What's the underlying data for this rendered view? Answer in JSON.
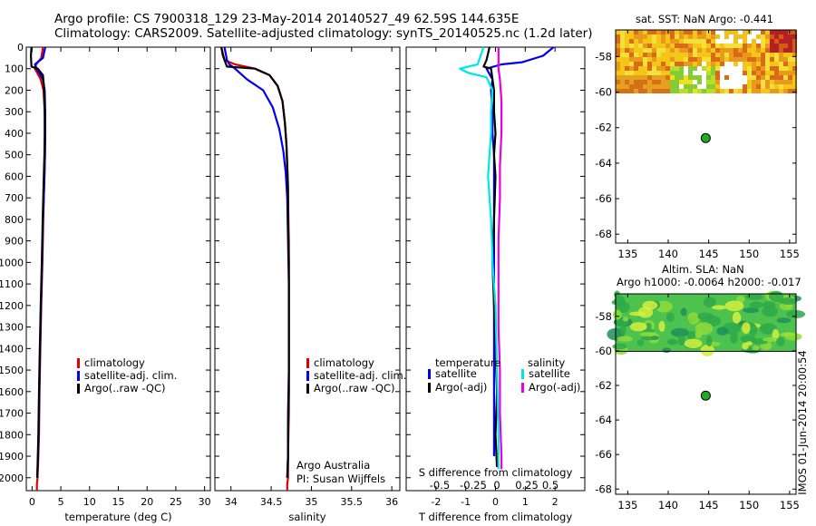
{
  "header": {
    "line1": "Argo profile: CS 7900318_129 23-May-2014 20140527_49 62.59S 144.635E",
    "line2": "Climatology: CARS2009. Satellite-adjusted climatology: synTS_20140525.nc (1.2d later)"
  },
  "credit": {
    "line1": "Argo Australia",
    "line2": "PI: Susan Wijffels"
  },
  "stamp": "IMOS 01-Jun-2014 20:00:54",
  "colors": {
    "climatology": "#e00000",
    "satellite": "#0000ee",
    "argo": "#000000",
    "sal_satellite": "#00e6e6",
    "sal_argo": "#e600e6"
  },
  "chart_data": [
    {
      "type": "line",
      "xlabel": "temperature (deg C)",
      "xlim": [
        -1,
        31
      ],
      "ylim": [
        2060,
        0
      ],
      "xticks": [
        0,
        5,
        10,
        15,
        20,
        25,
        30
      ],
      "yticks": [
        0,
        100,
        200,
        300,
        400,
        500,
        600,
        700,
        800,
        900,
        1000,
        1100,
        1200,
        1300,
        1400,
        1500,
        1600,
        1700,
        1800,
        1900,
        2000
      ],
      "legend": [
        "climatology",
        "satellite-adj. clim.",
        "Argo(..raw -QC)"
      ],
      "series": [
        {
          "name": "climatology",
          "color": "#e00000",
          "x": [
            1.9,
            1.6,
            0.7,
            0.5,
            1.5,
            2.0,
            2.2,
            2.3,
            2.25,
            2.15,
            2.05,
            1.95,
            1.8,
            1.6,
            1.45,
            1.3,
            1.2,
            1.1,
            0.95,
            0.85,
            0.85
          ],
          "y": [
            0,
            50,
            80,
            100,
            150,
            200,
            300,
            400,
            500,
            600,
            700,
            800,
            1000,
            1200,
            1400,
            1600,
            1800,
            1900,
            2000,
            2030,
            2060
          ]
        },
        {
          "name": "satellite-adj. clim.",
          "color": "#0000ee",
          "x": [
            2.3,
            1.9,
            0.5,
            0.8,
            1.9,
            2.2,
            2.3,
            2.3,
            2.25,
            2.15,
            2.05,
            1.9,
            1.75,
            1.55,
            1.4,
            1.25,
            1.15,
            1.05,
            0.9
          ],
          "y": [
            0,
            50,
            80,
            100,
            150,
            200,
            300,
            400,
            500,
            600,
            700,
            800,
            1000,
            1200,
            1400,
            1600,
            1800,
            1900,
            2000
          ]
        },
        {
          "name": "Argo(..raw -QC)",
          "color": "#000000",
          "x": [
            -0.1,
            -0.2,
            -0.1,
            1.0,
            1.9,
            2.1,
            2.2,
            2.2,
            2.15,
            2.05,
            1.95,
            1.85,
            1.7,
            1.5,
            1.35,
            1.2,
            1.1,
            1.0,
            0.9
          ],
          "y": [
            0,
            40,
            90,
            100,
            130,
            200,
            300,
            400,
            500,
            600,
            700,
            800,
            1000,
            1200,
            1400,
            1600,
            1800,
            1900,
            2000
          ]
        }
      ]
    },
    {
      "type": "line",
      "xlabel": "salinity",
      "xlim": [
        33.8,
        36.1
      ],
      "ylim": [
        2060,
        0
      ],
      "xticks": [
        34,
        34.5,
        35,
        35.5,
        36
      ],
      "legend": [
        "climatology",
        "satellite-adj. clim.",
        "Argo(..raw -QC)"
      ],
      "series": [
        {
          "name": "climatology",
          "color": "#e00000",
          "x": [
            33.88,
            33.92,
            34.05,
            34.3,
            34.48,
            34.58,
            34.64,
            34.67,
            34.69,
            34.7,
            34.71,
            34.72,
            34.72,
            34.72,
            34.72,
            34.72,
            34.71,
            34.71,
            34.7,
            34.7
          ],
          "y": [
            0,
            60,
            80,
            100,
            130,
            180,
            250,
            350,
            450,
            550,
            700,
            900,
            1100,
            1300,
            1500,
            1700,
            1900,
            2000,
            2030,
            2060
          ]
        },
        {
          "name": "satellite-adj. clim.",
          "color": "#0000ee",
          "x": [
            33.92,
            33.95,
            33.98,
            34.05,
            34.2,
            34.4,
            34.52,
            34.6,
            34.65,
            34.68,
            34.7,
            34.71,
            34.72,
            34.72,
            34.72,
            34.71,
            34.71,
            34.7
          ],
          "y": [
            0,
            60,
            80,
            100,
            150,
            200,
            280,
            380,
            480,
            580,
            700,
            900,
            1100,
            1300,
            1500,
            1700,
            1900,
            2000
          ]
        },
        {
          "name": "Argo(..raw -QC)",
          "color": "#000000",
          "x": [
            33.88,
            33.9,
            33.95,
            34.3,
            34.48,
            34.58,
            34.64,
            34.67,
            34.69,
            34.7,
            34.71,
            34.71,
            34.72,
            34.72,
            34.72,
            34.72,
            34.71,
            34.71,
            34.7
          ],
          "y": [
            0,
            40,
            90,
            100,
            130,
            180,
            250,
            350,
            450,
            550,
            650,
            800,
            1000,
            1200,
            1400,
            1600,
            1800,
            1900,
            2000
          ]
        }
      ]
    },
    {
      "type": "line",
      "xlabel": "T difference from climatology",
      "xlabel2": "S difference from climatology",
      "xlim": [
        -3,
        3
      ],
      "ylim": [
        2060,
        0
      ],
      "xticks": [
        -2,
        -1,
        0,
        1,
        2
      ],
      "xticks2": [
        "-0.5",
        "-0.25",
        "0",
        "0.25",
        "0.5"
      ],
      "legend_title_left": "temperature",
      "legend_title_right": "salinity",
      "legend": [
        "satellite",
        "Argo(-adj)",
        "satellite",
        "Argo(-adj)"
      ],
      "series": [
        {
          "name": "satellite",
          "color": "#0000ee",
          "x": [
            1.95,
            1.6,
            0.9,
            0.2,
            -0.3,
            -0.1,
            -0.15,
            -0.1,
            -0.1,
            -0.05,
            -0.05,
            -0.05,
            -0.05,
            -0.05,
            -0.05,
            -0.05,
            -0.05
          ],
          "y": [
            0,
            40,
            70,
            80,
            100,
            150,
            200,
            300,
            400,
            500,
            700,
            900,
            1100,
            1300,
            1500,
            1700,
            1900
          ]
        },
        {
          "name": "Argo(-adj)",
          "color": "#000000",
          "x": [
            -0.2,
            -0.3,
            -0.4,
            -0.15,
            -0.1,
            -0.05,
            -0.05,
            0.0,
            -0.05,
            0.0,
            -0.05,
            -0.1,
            -0.05,
            0.0,
            0.05,
            0.0,
            0.05
          ],
          "y": [
            0,
            60,
            90,
            100,
            150,
            200,
            300,
            400,
            500,
            600,
            800,
            1000,
            1200,
            1400,
            1600,
            1800,
            1950
          ]
        },
        {
          "name": "satellite",
          "color": "#00e6e6",
          "x": [
            -0.4,
            -0.6,
            -1.2,
            -0.9,
            -0.3,
            -0.1,
            -0.15,
            -0.15,
            -0.2,
            -0.25,
            -0.2,
            -0.15,
            -0.12,
            -0.1,
            0.0,
            0.05,
            0.1,
            0.1
          ],
          "y": [
            0,
            80,
            100,
            120,
            140,
            200,
            300,
            400,
            500,
            600,
            700,
            800,
            900,
            1000,
            1200,
            1500,
            1800,
            1960
          ]
        },
        {
          "name": "Argo(-adj)",
          "color": "#e600e6",
          "x": [
            0.1,
            0.1,
            0.15,
            0.2,
            0.2,
            0.15,
            0.15,
            0.1,
            0.1,
            0.1,
            0.15,
            0.15,
            0.2,
            0.2
          ],
          "y": [
            0,
            100,
            150,
            250,
            400,
            550,
            700,
            900,
            1100,
            1300,
            1500,
            1700,
            1900,
            1960
          ]
        }
      ]
    },
    {
      "type": "heatmap",
      "title": "sat. SST: NaN Argo: -0.441",
      "xlim": [
        133.5,
        155.8
      ],
      "ylim": [
        -68.5,
        -56.5
      ],
      "xticks": [
        135,
        140,
        145,
        150,
        155
      ],
      "yticks": [
        -58,
        -60,
        -62,
        -64,
        -66,
        -68
      ],
      "marker": {
        "lon": 144.635,
        "lat": -62.59
      }
    },
    {
      "type": "heatmap",
      "title": "Altim. SLA: NaN",
      "subtitle": "Argo h1000: -0.0064 h2000: -0.017",
      "xlim": [
        133.5,
        155.8
      ],
      "ylim": [
        -68.3,
        -56.7
      ],
      "xticks": [
        135,
        140,
        145,
        150,
        155
      ],
      "yticks": [
        -58,
        -60,
        -62,
        -64,
        -66,
        -68
      ],
      "marker": {
        "lon": 144.635,
        "lat": -62.59
      }
    }
  ]
}
